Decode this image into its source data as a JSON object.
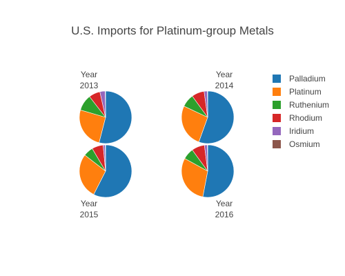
{
  "chart_data": {
    "type": "pie",
    "title": "U.S. Imports for Platinum-group Metals",
    "legend_position": "right",
    "categories": [
      "Palladium",
      "Platinum",
      "Ruthenium",
      "Rhodium",
      "Iridium",
      "Osmium"
    ],
    "colors": [
      "#1f77b4",
      "#ff7f0e",
      "#2ca02c",
      "#d62728",
      "#9467bd",
      "#8c564b"
    ],
    "pies": [
      {
        "title_line1": "Year",
        "title_line2": "2013",
        "title_position": "top",
        "values": [
          54.0,
          25.5,
          10.0,
          7.0,
          3.3,
          0.2
        ]
      },
      {
        "title_line1": "Year",
        "title_line2": "2014",
        "title_position": "top",
        "values": [
          55.5,
          26.5,
          8.0,
          7.8,
          2.0,
          0.2
        ]
      },
      {
        "title_line1": "Year",
        "title_line2": "2015",
        "title_position": "bottom",
        "values": [
          57.5,
          28.0,
          6.0,
          7.0,
          1.3,
          0.2
        ]
      },
      {
        "title_line1": "Year",
        "title_line2": "2016",
        "title_position": "bottom",
        "values": [
          53.0,
          30.0,
          7.0,
          8.0,
          1.8,
          0.2
        ]
      }
    ]
  }
}
